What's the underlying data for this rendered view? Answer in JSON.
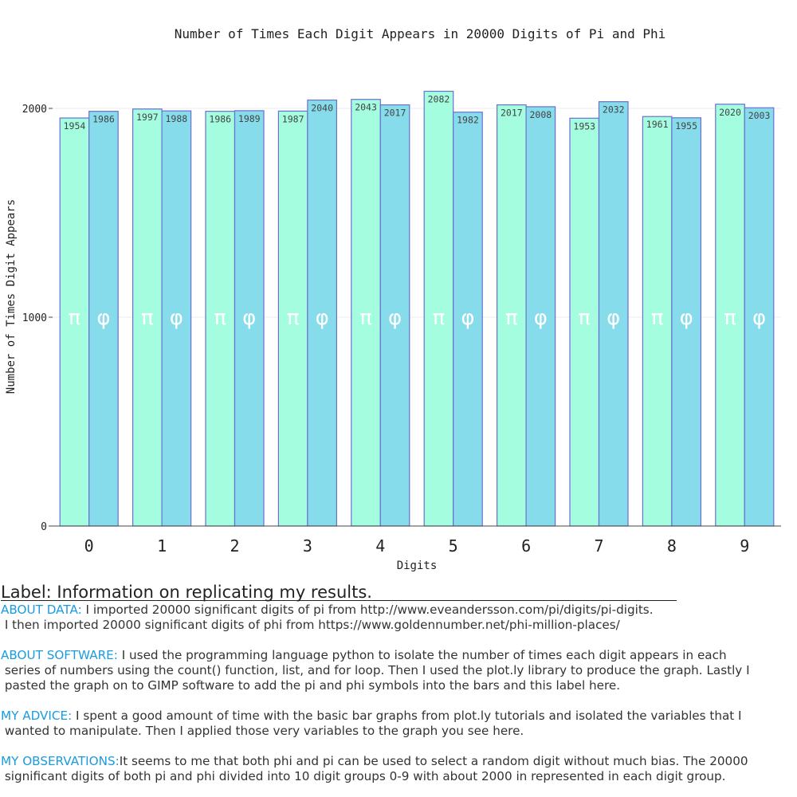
{
  "chart_data": {
    "type": "bar",
    "title": "Number of Times Each Digit Appears in 20000 Digits of Pi and Phi",
    "xlabel": "Digits",
    "ylabel": "Number of Times Digit Appears",
    "categories": [
      "0",
      "1",
      "2",
      "3",
      "4",
      "5",
      "6",
      "7",
      "8",
      "9"
    ],
    "series": [
      {
        "name": "π",
        "color": "#a3fdde",
        "values": [
          1954,
          1997,
          1986,
          1987,
          2043,
          2082,
          2017,
          1953,
          1961,
          2020
        ]
      },
      {
        "name": "φ",
        "color": "#87dceb",
        "values": [
          1986,
          1988,
          1989,
          2040,
          2017,
          1982,
          2008,
          2032,
          1955,
          2003
        ]
      }
    ],
    "ylim": [
      0,
      2000
    ],
    "yticks": [
      0,
      1000,
      2000
    ],
    "grid": true,
    "bar_outline_color": "#6b6fd1",
    "symbol_color": "#ffffff"
  },
  "notes": {
    "title": "Label: Information on replicating my results.",
    "paragraphs": [
      {
        "heading": "ABOUT DATA:",
        "lines": [
          " I imported 20000 significant digits of pi from http://www.eveandersson.com/pi/digits/pi-digits.",
          " I then imported 20000 significant digits of phi from https://www.goldennumber.net/phi-million-places/"
        ]
      },
      {
        "heading": "ABOUT SOFTWARE:",
        "lines": [
          " I used the programming language python to isolate the number of times each digit appears in each",
          " series of numbers using the count() function, list, and for loop. Then I used the plot.ly library to produce the graph. Lastly I",
          " pasted the graph on to GIMP software to add the pi and phi symbols into the bars and this label here."
        ]
      },
      {
        "heading": "MY ADVICE:",
        "lines": [
          " I spent a good amount of time with the basic bar graphs from plot.ly tutorials and isolated the variables that I",
          " wanted to manipulate. Then I applied those very variables to the graph you see here."
        ]
      },
      {
        "heading": "MY OBSERVATIONS:",
        "lines": [
          "It seems to me that both phi and pi can be used to select a random digit without much bias. The 20000",
          " significant digits of both pi and phi divided into 10 digit groups 0-9 with about 2000 in represented in each digit group."
        ]
      }
    ],
    "heading_color": "#1a9be0"
  }
}
